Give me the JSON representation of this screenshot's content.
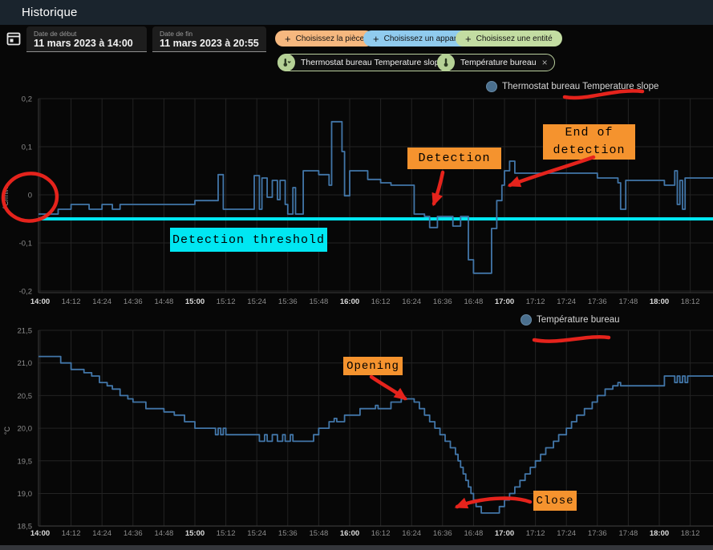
{
  "header": {
    "title": "Historique"
  },
  "icons": {
    "plus": "+",
    "close": "×"
  },
  "filters": {
    "start": {
      "label": "Date de début",
      "value": "11 mars 2023 à 14:00"
    },
    "end": {
      "label": "Date de fin",
      "value": "11 mars 2023 à 20:55"
    },
    "area_button": "Choisissez la pièce",
    "device_button": "Choisissez un appareil",
    "entity_button": "Choisissez une entité",
    "chips": [
      {
        "label": "Thermostat bureau Temperature slope"
      },
      {
        "label": "Température bureau"
      }
    ]
  },
  "colors": {
    "line": "#4276a8",
    "legend_dot": "#4a6f8e",
    "threshold": "#00e7f2",
    "annotation_orange": "#f5932e",
    "hand_drawn_red": "#e5231c",
    "pill_area": "#f6b87f",
    "pill_device": "#90cbee",
    "pill_entity": "#c3dda2",
    "chip_green": "#b5d196",
    "header_bar": "#1a242d"
  },
  "chart_data": [
    {
      "type": "line",
      "step": "after",
      "name": "Thermostat bureau Temperature slope",
      "ylabel": "°C/min",
      "ylim": [
        -0.2,
        0.2
      ],
      "grid": true,
      "legend_position": "top-right",
      "y_ticks": [
        {
          "v": 0.2,
          "label": "0,2"
        },
        {
          "v": 0.1,
          "label": "0,1"
        },
        {
          "v": 0.0,
          "label": "0"
        },
        {
          "v": -0.1,
          "label": "-0,1"
        },
        {
          "v": -0.2,
          "label": "-0,2"
        }
      ],
      "x_ticks": [
        "14:00",
        "14:12",
        "14:24",
        "14:36",
        "14:48",
        "15:00",
        "15:12",
        "15:24",
        "15:36",
        "15:48",
        "16:00",
        "16:12",
        "16:24",
        "16:36",
        "16:48",
        "17:00",
        "17:12",
        "17:24",
        "17:36",
        "17:48",
        "18:00",
        "18:12"
      ],
      "threshold": {
        "value": -0.05,
        "label": "Detection threshold"
      },
      "annotations": [
        {
          "text": "Detection"
        },
        {
          "text": "End of detection"
        }
      ],
      "points": [
        [
          "14:00",
          -0.04
        ],
        [
          "14:07",
          -0.03
        ],
        [
          "14:12",
          -0.02
        ],
        [
          "14:19",
          -0.03
        ],
        [
          "14:24",
          -0.02
        ],
        [
          "14:28",
          -0.03
        ],
        [
          "14:31",
          -0.02
        ],
        [
          "15:00",
          -0.012
        ],
        [
          "15:09",
          0.042
        ],
        [
          "15:11",
          -0.03
        ],
        [
          "15:23",
          0.04
        ],
        [
          "15:25",
          -0.03
        ],
        [
          "15:26",
          0.035
        ],
        [
          "15:28",
          -0.005
        ],
        [
          "15:30",
          0.03
        ],
        [
          "15:32",
          -0.01
        ],
        [
          "15:33",
          0.03
        ],
        [
          "15:35",
          -0.02
        ],
        [
          "15:36",
          -0.04
        ],
        [
          "15:38",
          0.015
        ],
        [
          "15:39",
          -0.04
        ],
        [
          "15:42",
          0.05
        ],
        [
          "15:48",
          0.042
        ],
        [
          "15:52",
          0.02
        ],
        [
          "15:53",
          0.152
        ],
        [
          "15:57",
          0.09
        ],
        [
          "15:58",
          -0.002
        ],
        [
          "16:00",
          0.05
        ],
        [
          "16:07",
          0.032
        ],
        [
          "16:12",
          0.025
        ],
        [
          "16:16",
          0.02
        ],
        [
          "16:25",
          -0.04
        ],
        [
          "16:29",
          -0.045
        ],
        [
          "16:31",
          -0.068
        ],
        [
          "16:34",
          -0.045
        ],
        [
          "16:40",
          -0.065
        ],
        [
          "16:43",
          -0.045
        ],
        [
          "16:46",
          -0.135
        ],
        [
          "16:48",
          -0.163
        ],
        [
          "16:55",
          -0.07
        ],
        [
          "16:57",
          -0.012
        ],
        [
          "16:59",
          0.02
        ],
        [
          "17:00",
          0.05
        ],
        [
          "17:02",
          0.07
        ],
        [
          "17:04",
          0.045
        ],
        [
          "17:36",
          0.035
        ],
        [
          "17:44",
          0.025
        ],
        [
          "17:45",
          -0.03
        ],
        [
          "17:47",
          0.03
        ],
        [
          "18:02",
          0.02
        ],
        [
          "18:06",
          0.05
        ],
        [
          "18:07",
          -0.02
        ],
        [
          "18:08",
          0.03
        ],
        [
          "18:09",
          -0.03
        ],
        [
          "18:10",
          0.035
        ],
        [
          "18:18",
          0.035
        ]
      ]
    },
    {
      "type": "line",
      "step": "after",
      "name": "Température bureau",
      "ylabel": "°C",
      "ylim": [
        18.5,
        21.5
      ],
      "grid": true,
      "legend_position": "top-right",
      "y_ticks": [
        {
          "v": 21.5,
          "label": "21,5"
        },
        {
          "v": 21.0,
          "label": "21,0"
        },
        {
          "v": 20.5,
          "label": "20,5"
        },
        {
          "v": 20.0,
          "label": "20,0"
        },
        {
          "v": 19.5,
          "label": "19,5"
        },
        {
          "v": 19.0,
          "label": "19,0"
        },
        {
          "v": 18.5,
          "label": "18,5"
        }
      ],
      "x_ticks": [
        "14:00",
        "14:12",
        "14:24",
        "14:36",
        "14:48",
        "15:00",
        "15:12",
        "15:24",
        "15:36",
        "15:48",
        "16:00",
        "16:12",
        "16:24",
        "16:36",
        "16:48",
        "17:00",
        "17:12",
        "17:24",
        "17:36",
        "17:48",
        "18:00",
        "18:12"
      ],
      "annotations": [
        {
          "text": "Opening"
        },
        {
          "text": "Close"
        }
      ],
      "points": [
        [
          "14:00",
          21.1
        ],
        [
          "14:08",
          21.0
        ],
        [
          "14:12",
          20.9
        ],
        [
          "14:17",
          20.85
        ],
        [
          "14:20",
          20.8
        ],
        [
          "14:23",
          20.7
        ],
        [
          "14:26",
          20.65
        ],
        [
          "14:28",
          20.6
        ],
        [
          "14:31",
          20.5
        ],
        [
          "14:34",
          20.45
        ],
        [
          "14:36",
          20.4
        ],
        [
          "14:41",
          20.3
        ],
        [
          "14:48",
          20.25
        ],
        [
          "14:52",
          20.2
        ],
        [
          "14:56",
          20.1
        ],
        [
          "15:00",
          20.0
        ],
        [
          "15:08",
          19.9
        ],
        [
          "15:09",
          20.0
        ],
        [
          "15:10",
          19.9
        ],
        [
          "15:11",
          20.0
        ],
        [
          "15:12",
          19.9
        ],
        [
          "15:25",
          19.8
        ],
        [
          "15:27",
          19.9
        ],
        [
          "15:28",
          19.8
        ],
        [
          "15:30",
          19.9
        ],
        [
          "15:32",
          19.8
        ],
        [
          "15:34",
          19.9
        ],
        [
          "15:35",
          19.8
        ],
        [
          "15:37",
          19.9
        ],
        [
          "15:38",
          19.8
        ],
        [
          "15:46",
          19.9
        ],
        [
          "15:48",
          20.0
        ],
        [
          "15:52",
          20.1
        ],
        [
          "15:54",
          20.15
        ],
        [
          "15:55",
          20.1
        ],
        [
          "15:58",
          20.2
        ],
        [
          "16:04",
          20.3
        ],
        [
          "16:10",
          20.35
        ],
        [
          "16:11",
          20.3
        ],
        [
          "16:16",
          20.4
        ],
        [
          "16:20",
          20.45
        ],
        [
          "16:25",
          20.4
        ],
        [
          "16:27",
          20.3
        ],
        [
          "16:29",
          20.2
        ],
        [
          "16:31",
          20.1
        ],
        [
          "16:33",
          20.0
        ],
        [
          "16:35",
          19.9
        ],
        [
          "16:37",
          19.8
        ],
        [
          "16:39",
          19.7
        ],
        [
          "16:41",
          19.6
        ],
        [
          "16:42",
          19.5
        ],
        [
          "16:43",
          19.4
        ],
        [
          "16:44",
          19.3
        ],
        [
          "16:45",
          19.2
        ],
        [
          "16:46",
          19.1
        ],
        [
          "16:47",
          19.0
        ],
        [
          "16:48",
          18.9
        ],
        [
          "16:49",
          18.8
        ],
        [
          "16:51",
          18.7
        ],
        [
          "16:58",
          18.8
        ],
        [
          "17:00",
          18.9
        ],
        [
          "17:02",
          19.0
        ],
        [
          "17:04",
          19.1
        ],
        [
          "17:06",
          19.2
        ],
        [
          "17:08",
          19.3
        ],
        [
          "17:10",
          19.4
        ],
        [
          "17:12",
          19.5
        ],
        [
          "17:14",
          19.6
        ],
        [
          "17:16",
          19.7
        ],
        [
          "17:19",
          19.8
        ],
        [
          "17:21",
          19.9
        ],
        [
          "17:24",
          20.0
        ],
        [
          "17:26",
          20.1
        ],
        [
          "17:28",
          20.2
        ],
        [
          "17:31",
          20.3
        ],
        [
          "17:34",
          20.4
        ],
        [
          "17:36",
          20.5
        ],
        [
          "17:39",
          20.6
        ],
        [
          "17:42",
          20.65
        ],
        [
          "17:44",
          20.7
        ],
        [
          "17:45",
          20.65
        ],
        [
          "18:02",
          20.8
        ],
        [
          "18:06",
          20.7
        ],
        [
          "18:07",
          20.8
        ],
        [
          "18:08",
          20.7
        ],
        [
          "18:09",
          20.8
        ],
        [
          "18:10",
          20.7
        ],
        [
          "18:11",
          20.8
        ],
        [
          "18:18",
          20.8
        ]
      ]
    }
  ]
}
